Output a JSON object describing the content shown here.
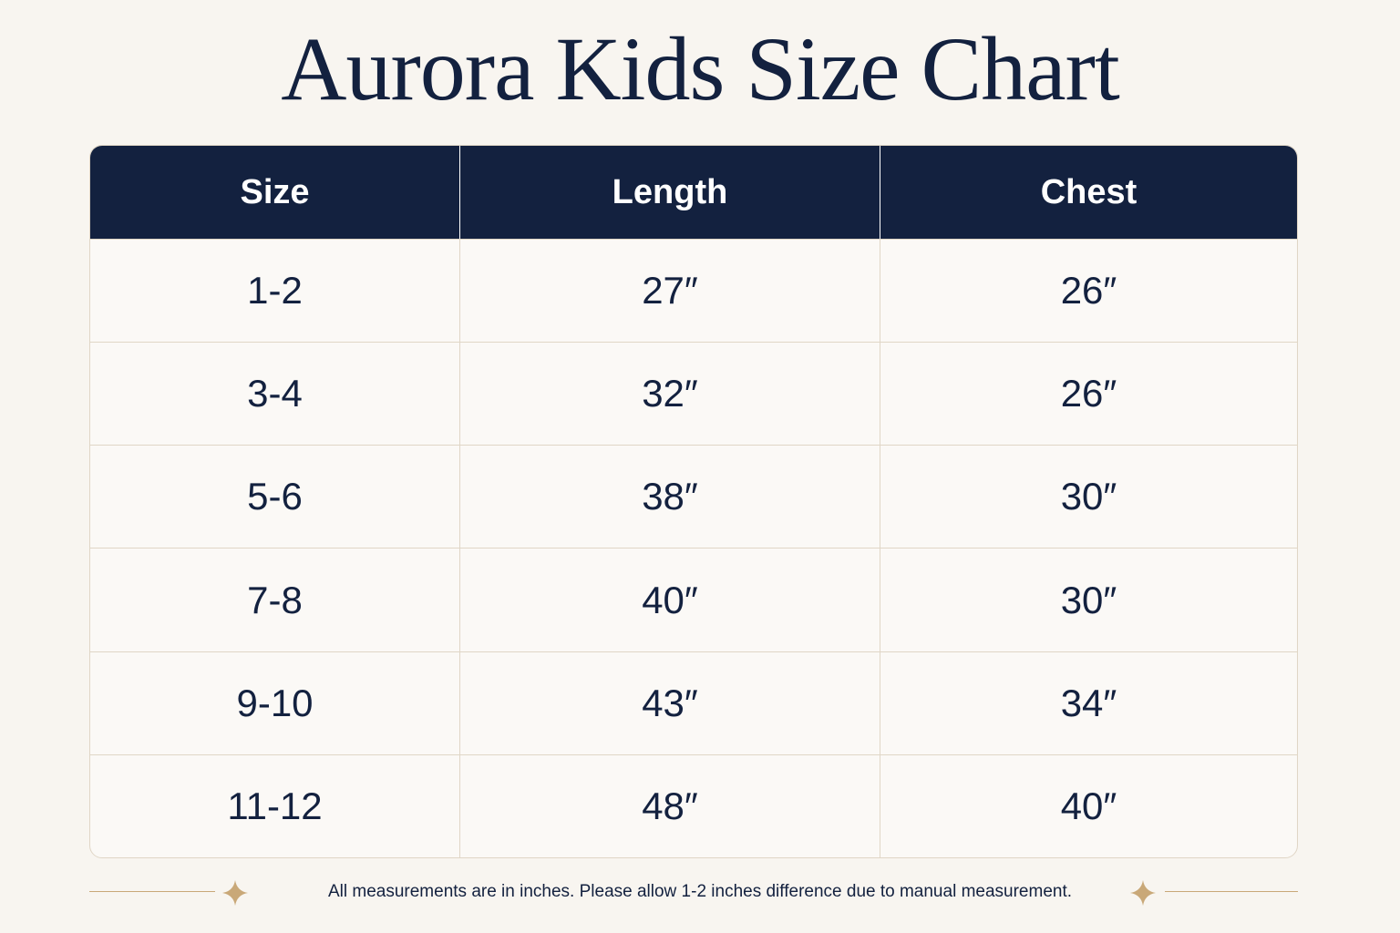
{
  "header": {
    "title": "Aurora Kids Size Chart"
  },
  "table": {
    "columns": [
      "Size",
      "Length",
      "Chest"
    ],
    "rows": [
      [
        "1-2",
        "27″",
        "26″"
      ],
      [
        "3-4",
        "32″",
        "26″"
      ],
      [
        "5-6",
        "38″",
        "30″"
      ],
      [
        "7-8",
        "40″",
        "30″"
      ],
      [
        "9-10",
        "43″",
        "34″"
      ],
      [
        "11-12",
        "48″",
        "40″"
      ]
    ]
  },
  "footer": {
    "note": "All measurements are in inches. Please allow 1-2 inches difference due to manual measurement."
  }
}
